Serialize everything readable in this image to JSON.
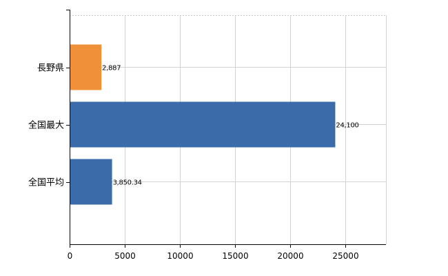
{
  "chart_data": {
    "type": "bar",
    "orientation": "horizontal",
    "categories": [
      "長野県",
      "全国最大",
      "全国平均"
    ],
    "values": [
      2887,
      24100,
      3850.34
    ],
    "value_labels": [
      "2,887",
      "24,100",
      "3,850.34"
    ],
    "bar_colors": [
      "#f0913a",
      "#3b6ba8",
      "#3b6ba8"
    ],
    "xlim": [
      0,
      28700
    ],
    "xticks": [
      0,
      5000,
      10000,
      15000,
      20000,
      25000
    ],
    "xtick_labels": [
      "0",
      "5000",
      "10000",
      "15000",
      "20000",
      "25000"
    ],
    "grid": true,
    "legend": "none"
  }
}
